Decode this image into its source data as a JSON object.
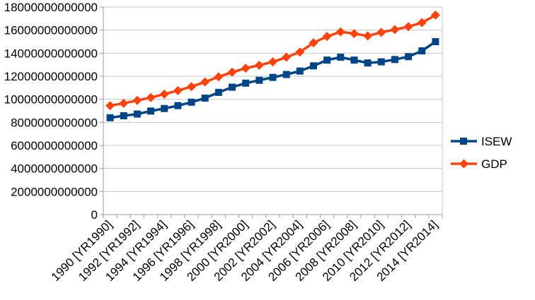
{
  "chart_data": {
    "type": "line",
    "title": "",
    "xlabel": "",
    "ylabel": "",
    "categories": [
      "1990",
      "1991",
      "1992",
      "1993",
      "1994",
      "1995",
      "1996",
      "1997",
      "1998",
      "1999",
      "2000",
      "2001",
      "2002",
      "2003",
      "2004",
      "2005",
      "2006",
      "2007",
      "2008",
      "2009",
      "2010",
      "2011",
      "2012",
      "2013",
      "2014"
    ],
    "x_tick_labels": [
      "1990 [YR1990]",
      "1992 [YR1992]",
      "1994 [YR1994]",
      "1996 [YR1996]",
      "1998 [YR1998]",
      "2000 [YR2000]",
      "2002 [YR2002]",
      "2004 [YR2004]",
      "2006 [YR2006]",
      "2008 [YR2008]",
      "2010 [YR2010]",
      "2012 [YR2012]",
      "2014 [YR2014]"
    ],
    "ylim": [
      0,
      18000000000000
    ],
    "y_ticks": [
      0,
      2000000000000,
      4000000000000,
      6000000000000,
      8000000000000,
      10000000000000,
      12000000000000,
      14000000000000,
      16000000000000,
      18000000000000
    ],
    "grid": true,
    "legend_position": "right",
    "series": [
      {
        "name": "ISEW",
        "color": "#004586",
        "marker": "square",
        "values": [
          8400000000000,
          8570000000000,
          8720000000000,
          8980000000000,
          9200000000000,
          9450000000000,
          9750000000000,
          10100000000000,
          10600000000000,
          11050000000000,
          11400000000000,
          11650000000000,
          11900000000000,
          12150000000000,
          12450000000000,
          12900000000000,
          13400000000000,
          13650000000000,
          13400000000000,
          13150000000000,
          13250000000000,
          13450000000000,
          13700000000000,
          14200000000000,
          15000000000000
        ]
      },
      {
        "name": "GDP",
        "color": "#FF420E",
        "marker": "diamond",
        "values": [
          9450000000000,
          9650000000000,
          9900000000000,
          10150000000000,
          10450000000000,
          10750000000000,
          11100000000000,
          11500000000000,
          11950000000000,
          12350000000000,
          12700000000000,
          12950000000000,
          13250000000000,
          13650000000000,
          14100000000000,
          14900000000000,
          15450000000000,
          15850000000000,
          15700000000000,
          15500000000000,
          15800000000000,
          16050000000000,
          16300000000000,
          16650000000000,
          17300000000000
        ]
      }
    ],
    "grid_color": "#c6c6c6",
    "axis_color": "#999999",
    "text_color": "#000000"
  }
}
